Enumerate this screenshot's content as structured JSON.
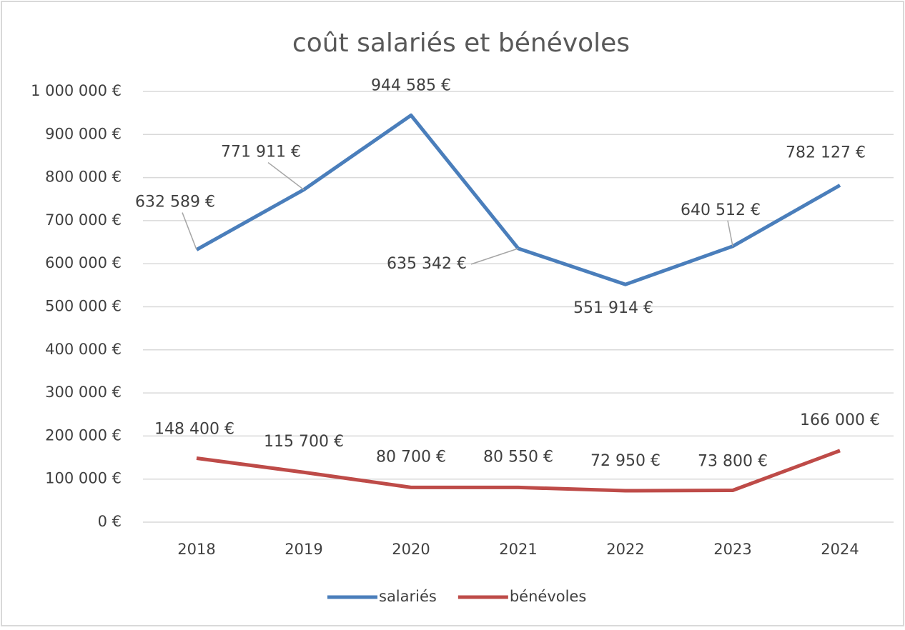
{
  "chart_data": {
    "type": "line",
    "title": "coût salariés et bénévoles",
    "categories": [
      "2018",
      "2019",
      "2020",
      "2021",
      "2022",
      "2023",
      "2024"
    ],
    "series": [
      {
        "name": "salariés",
        "color": "#4a7ebb",
        "values": [
          632589,
          771911,
          944585,
          635342,
          551914,
          640512,
          782127
        ],
        "value_labels": [
          "632 589 €",
          "771 911 €",
          "944 585 €",
          "635 342 €",
          "551 914 €",
          "640 512 €",
          "782 127 €"
        ]
      },
      {
        "name": "bénévoles",
        "color": "#be4b48",
        "values": [
          148400,
          115700,
          80700,
          80550,
          72950,
          73800,
          166000
        ],
        "value_labels": [
          "148 400 €",
          "115 700 €",
          "80 700 €",
          "80 550 €",
          "72 950 €",
          "73 800 €",
          "166 000 €"
        ]
      }
    ],
    "ylim": [
      0,
      1000000
    ],
    "yticks": [
      {
        "value": 0,
        "label": "0 €"
      },
      {
        "value": 100000,
        "label": "100 000 €"
      },
      {
        "value": 200000,
        "label": "200 000 €"
      },
      {
        "value": 300000,
        "label": "300 000 €"
      },
      {
        "value": 400000,
        "label": "400 000 €"
      },
      {
        "value": 500000,
        "label": "500 000 €"
      },
      {
        "value": 600000,
        "label": "600 000 €"
      },
      {
        "value": 700000,
        "label": "700 000 €"
      },
      {
        "value": 800000,
        "label": "800 000 €"
      },
      {
        "value": 900000,
        "label": "900 000 €"
      },
      {
        "value": 1000000,
        "label": "1 000 000 €"
      }
    ],
    "grid": true,
    "legend": "bottom"
  }
}
